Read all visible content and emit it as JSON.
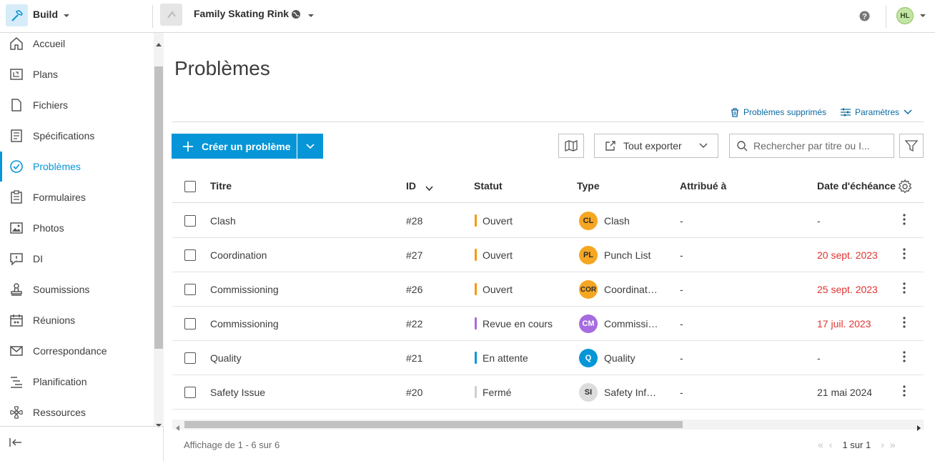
{
  "topbar": {
    "app_name": "Build",
    "project_name": "Family Skating Rink",
    "user_initials": "HL"
  },
  "sidebar": {
    "items": [
      {
        "label": "Accueil",
        "icon": "home-icon"
      },
      {
        "label": "Plans",
        "icon": "sheets-icon"
      },
      {
        "label": "Fichiers",
        "icon": "file-icon"
      },
      {
        "label": "Spécifications",
        "icon": "specs-icon"
      },
      {
        "label": "Problèmes",
        "icon": "issues-icon",
        "active": true
      },
      {
        "label": "Formulaires",
        "icon": "forms-icon"
      },
      {
        "label": "Photos",
        "icon": "photos-icon"
      },
      {
        "label": "DI",
        "icon": "rfi-icon"
      },
      {
        "label": "Soumissions",
        "icon": "submittals-icon"
      },
      {
        "label": "Réunions",
        "icon": "meetings-icon"
      },
      {
        "label": "Correspondance",
        "icon": "mail-icon"
      },
      {
        "label": "Planification",
        "icon": "schedule-icon"
      },
      {
        "label": "Ressources",
        "icon": "assets-icon"
      }
    ]
  },
  "main": {
    "title": "Problèmes",
    "deleted_link": "Problèmes supprimés",
    "params_link": "Paramètres",
    "create_button": "Créer un problème",
    "export_button": "Tout exporter",
    "search_placeholder": "Rechercher par titre ou I..."
  },
  "table": {
    "headers": {
      "title": "Titre",
      "id": "ID",
      "status": "Statut",
      "type": "Type",
      "assigned": "Attribué à",
      "due": "Date d'échéance"
    },
    "rows": [
      {
        "title": "Clash",
        "id": "#28",
        "status": "Ouvert",
        "status_color": "#f59a0c",
        "badge": "CL",
        "badge_color": "#f5a623",
        "type": "Clash",
        "assigned": "-",
        "due": "-",
        "overdue": false
      },
      {
        "title": "Coordination",
        "id": "#27",
        "status": "Ouvert",
        "status_color": "#f59a0c",
        "badge": "PL",
        "badge_color": "#f5a623",
        "type": "Punch List",
        "assigned": "-",
        "due": "20 sept. 2023",
        "overdue": true
      },
      {
        "title": "Commissioning",
        "id": "#26",
        "status": "Ouvert",
        "status_color": "#f59a0c",
        "badge": "COR",
        "badge_color": "#f5a623",
        "type": "Coordinat…",
        "assigned": "-",
        "due": "25 sept. 2023",
        "overdue": true
      },
      {
        "title": "Commissioning",
        "id": "#22",
        "status": "Revue en cours",
        "status_color": "#a66be0",
        "badge": "CM",
        "badge_color": "#a66be0",
        "type": "Commissi…",
        "assigned": "-",
        "due": "17 juil. 2023",
        "overdue": true
      },
      {
        "title": "Quality",
        "id": "#21",
        "status": "En attente",
        "status_color": "#0696d7",
        "badge": "Q",
        "badge_color": "#0696d7",
        "type": "Quality",
        "assigned": "-",
        "due": "-",
        "overdue": false
      },
      {
        "title": "Safety Issue",
        "id": "#20",
        "status": "Fermé",
        "status_color": "#d0d0d0",
        "badge": "SI",
        "badge_color": "#dcdcdc",
        "type": "Safety Inf…",
        "assigned": "-",
        "due": "21 mai 2024",
        "overdue": false
      }
    ]
  },
  "footer": {
    "count_text": "Affichage de 1 - 6 sur 6",
    "page_text": "1 sur 1"
  }
}
